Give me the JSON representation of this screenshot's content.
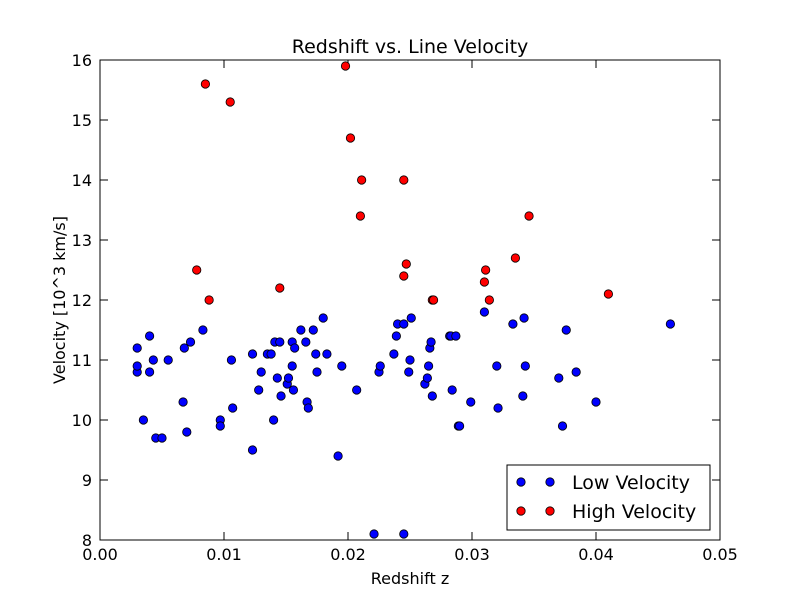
{
  "chart_data": {
    "type": "scatter",
    "title": "Redshift vs. Line Velocity",
    "xlabel": "Redshift z",
    "ylabel": "Velocity [10^3 km/s]",
    "xlim": [
      0.0,
      0.05
    ],
    "ylim": [
      8,
      16
    ],
    "xticks": [
      "0.00",
      "0.01",
      "0.02",
      "0.03",
      "0.04",
      "0.05"
    ],
    "yticks": [
      "8",
      "9",
      "10",
      "11",
      "12",
      "13",
      "14",
      "15",
      "16"
    ],
    "grid": false,
    "legend_position": "bottom-right",
    "series": [
      {
        "name": "Low Velocity",
        "color": "#0000ff",
        "points": [
          [
            0.003,
            10.8
          ],
          [
            0.003,
            10.9
          ],
          [
            0.003,
            11.2
          ],
          [
            0.0035,
            10.0
          ],
          [
            0.004,
            10.8
          ],
          [
            0.004,
            11.4
          ],
          [
            0.0043,
            11.0
          ],
          [
            0.0045,
            9.7
          ],
          [
            0.005,
            9.7
          ],
          [
            0.0055,
            11.0
          ],
          [
            0.0067,
            10.3
          ],
          [
            0.0068,
            11.2
          ],
          [
            0.007,
            9.8
          ],
          [
            0.0073,
            11.3
          ],
          [
            0.0083,
            11.5
          ],
          [
            0.0097,
            10.0
          ],
          [
            0.0097,
            9.9
          ],
          [
            0.0106,
            11.0
          ],
          [
            0.0107,
            10.2
          ],
          [
            0.0123,
            11.1
          ],
          [
            0.0123,
            9.5
          ],
          [
            0.0128,
            10.5
          ],
          [
            0.013,
            10.8
          ],
          [
            0.0135,
            11.1
          ],
          [
            0.0138,
            11.1
          ],
          [
            0.014,
            10.0
          ],
          [
            0.0141,
            11.3
          ],
          [
            0.0143,
            10.7
          ],
          [
            0.0145,
            11.3
          ],
          [
            0.0146,
            10.4
          ],
          [
            0.0151,
            10.6
          ],
          [
            0.0152,
            10.7
          ],
          [
            0.0155,
            11.3
          ],
          [
            0.0155,
            10.9
          ],
          [
            0.0156,
            10.5
          ],
          [
            0.0157,
            11.2
          ],
          [
            0.0162,
            11.5
          ],
          [
            0.0166,
            11.3
          ],
          [
            0.0167,
            10.3
          ],
          [
            0.0168,
            10.2
          ],
          [
            0.0172,
            11.5
          ],
          [
            0.0174,
            11.1
          ],
          [
            0.0175,
            10.8
          ],
          [
            0.018,
            11.7
          ],
          [
            0.0183,
            11.1
          ],
          [
            0.0192,
            9.4
          ],
          [
            0.0195,
            10.9
          ],
          [
            0.0207,
            10.5
          ],
          [
            0.0221,
            8.1
          ],
          [
            0.0225,
            10.8
          ],
          [
            0.0226,
            10.9
          ],
          [
            0.0237,
            11.1
          ],
          [
            0.0239,
            11.4
          ],
          [
            0.024,
            11.6
          ],
          [
            0.0245,
            11.6
          ],
          [
            0.0245,
            8.1
          ],
          [
            0.0249,
            10.8
          ],
          [
            0.025,
            11.0
          ],
          [
            0.0251,
            11.7
          ],
          [
            0.0262,
            10.6
          ],
          [
            0.0264,
            10.7
          ],
          [
            0.0265,
            10.9
          ],
          [
            0.0266,
            11.2
          ],
          [
            0.0267,
            11.3
          ],
          [
            0.0268,
            10.4
          ],
          [
            0.0282,
            11.4
          ],
          [
            0.0283,
            11.4
          ],
          [
            0.0284,
            10.5
          ],
          [
            0.0287,
            11.4
          ],
          [
            0.0289,
            9.9
          ],
          [
            0.029,
            9.9
          ],
          [
            0.0299,
            10.3
          ],
          [
            0.031,
            11.8
          ],
          [
            0.032,
            10.9
          ],
          [
            0.0321,
            10.2
          ],
          [
            0.0333,
            11.6
          ],
          [
            0.0341,
            10.4
          ],
          [
            0.0342,
            11.7
          ],
          [
            0.0343,
            10.9
          ],
          [
            0.037,
            10.7
          ],
          [
            0.0373,
            9.9
          ],
          [
            0.0376,
            11.5
          ],
          [
            0.0384,
            10.8
          ],
          [
            0.04,
            10.3
          ],
          [
            0.046,
            11.6
          ]
        ]
      },
      {
        "name": "High Velocity",
        "color": "#ff0000",
        "points": [
          [
            0.0078,
            12.5
          ],
          [
            0.0085,
            15.6
          ],
          [
            0.0088,
            12.0
          ],
          [
            0.0105,
            15.3
          ],
          [
            0.0145,
            12.2
          ],
          [
            0.0198,
            15.9
          ],
          [
            0.0202,
            14.7
          ],
          [
            0.021,
            13.4
          ],
          [
            0.0211,
            14.0
          ],
          [
            0.0245,
            14.0
          ],
          [
            0.0245,
            12.4
          ],
          [
            0.0247,
            12.6
          ],
          [
            0.0268,
            12.0
          ],
          [
            0.0269,
            12.0
          ],
          [
            0.031,
            12.3
          ],
          [
            0.0311,
            12.5
          ],
          [
            0.0314,
            12.0
          ],
          [
            0.0335,
            12.7
          ],
          [
            0.0346,
            13.4
          ],
          [
            0.041,
            12.1
          ]
        ]
      }
    ]
  }
}
